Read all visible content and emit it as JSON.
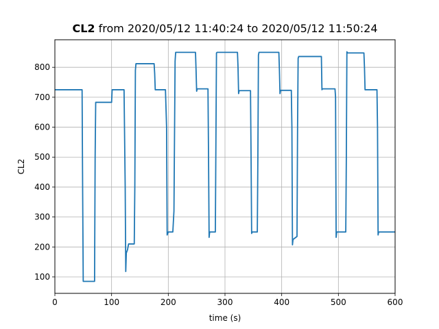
{
  "chart_data": {
    "type": "line",
    "title": {
      "bold": "CL2",
      "rest": " from 2020/05/12 11:40:24 to 2020/05/12 11:50:24"
    },
    "xlabel": "time (s)",
    "ylabel": "CL2",
    "xlim": [
      0,
      600
    ],
    "ylim": [
      45,
      892
    ],
    "x_ticks": [
      0,
      100,
      200,
      300,
      400,
      500,
      600
    ],
    "y_ticks": [
      100,
      200,
      300,
      400,
      500,
      600,
      700,
      800
    ],
    "grid": true,
    "line_color": "#1f77b4",
    "series": [
      {
        "x": [
          0,
          48,
          49,
          50,
          70,
          71,
          72,
          100,
          101,
          102,
          122,
          124,
          125,
          126,
          128,
          130,
          131,
          140,
          141,
          142,
          143,
          175,
          176,
          177,
          195,
          197,
          198,
          200,
          208,
          210,
          212,
          213,
          248,
          249,
          250,
          251,
          252,
          270,
          271,
          272,
          273,
          283,
          284,
          285,
          286,
          322,
          323,
          324,
          325,
          326,
          345,
          346,
          347,
          348,
          357,
          358,
          359,
          360,
          395,
          396,
          397,
          398,
          417,
          418,
          419,
          420,
          427,
          428,
          429,
          430,
          470,
          471,
          472,
          494,
          495,
          496,
          497,
          513,
          514,
          515,
          516,
          545,
          546,
          547,
          568,
          569,
          570,
          571,
          600
        ],
        "y": [
          725,
          725,
          380,
          85,
          85,
          500,
          683,
          683,
          725,
          725,
          725,
          400,
          118,
          180,
          190,
          210,
          210,
          210,
          400,
          790,
          812,
          812,
          780,
          725,
          725,
          600,
          240,
          250,
          250,
          320,
          820,
          850,
          850,
          790,
          720,
          728,
          728,
          728,
          500,
          232,
          250,
          250,
          550,
          848,
          850,
          850,
          800,
          712,
          722,
          722,
          722,
          500,
          245,
          250,
          250,
          500,
          840,
          850,
          850,
          790,
          712,
          723,
          723,
          600,
          207,
          225,
          235,
          600,
          830,
          836,
          836,
          725,
          728,
          728,
          700,
          232,
          250,
          250,
          500,
          852,
          848,
          848,
          800,
          725,
          725,
          600,
          240,
          250,
          250
        ]
      }
    ]
  }
}
